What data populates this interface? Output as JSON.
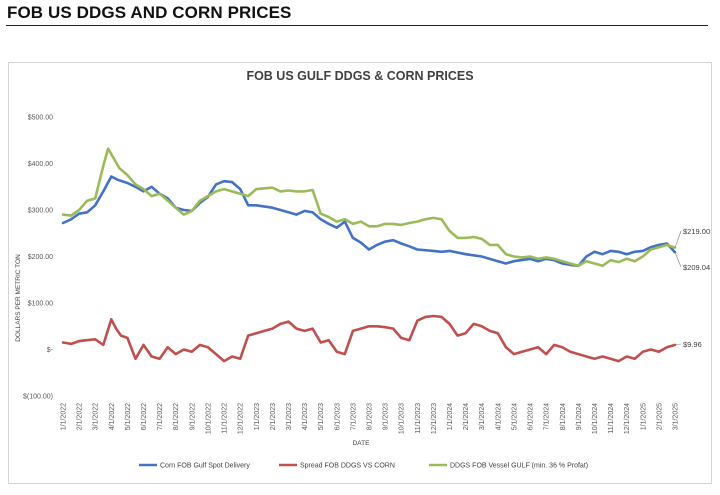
{
  "page_title": "FOB US DDGS AND CORN PRICES",
  "chart_data": {
    "type": "line",
    "title": "FOB US GULF DDGS & CORN PRICES",
    "ylabel": "DOLLARS PER METRIC TON",
    "xlabel": "DATE",
    "ylim": [
      -100,
      500
    ],
    "ytick_values": [
      500,
      400,
      300,
      200,
      100,
      0,
      -100
    ],
    "ytick_labels": [
      "$500.00",
      "$400.00",
      "$300.00",
      "$200.00",
      "$100.00",
      "$-",
      "$(100.00)"
    ],
    "categories": [
      "1/1/2022",
      "2/1/2022",
      "3/1/2022",
      "4/1/2022",
      "5/1/2022",
      "6/1/2022",
      "7/1/2022",
      "8/1/2022",
      "9/1/2022",
      "10/1/2022",
      "11/1/2022",
      "12/1/2022",
      "1/1/2023",
      "2/1/2023",
      "3/1/2023",
      "4/1/2023",
      "5/1/2023",
      "6/1/2023",
      "7/1/2023",
      "8/1/2023",
      "9/1/2023",
      "10/1/2023",
      "11/1/2023",
      "12/1/2023",
      "1/1/2024",
      "2/1/2024",
      "3/1/2024",
      "4/1/2024",
      "5/1/2024",
      "6/1/2024",
      "7/1/2024",
      "8/1/2024",
      "9/1/2024",
      "10/1/2024",
      "11/1/2024",
      "12/1/2024",
      "1/1/2025",
      "2/1/2025",
      "3/1/2025"
    ],
    "series": [
      {
        "name": "Corn FOB Gulf Spot Delivery",
        "color": "#4472c4",
        "values": [
          [
            0,
            272
          ],
          [
            0.5,
            280
          ],
          [
            1,
            292
          ],
          [
            1.5,
            295
          ],
          [
            2,
            310
          ],
          [
            2.5,
            340
          ],
          [
            3,
            372
          ],
          [
            3.4,
            365
          ],
          [
            4,
            358
          ],
          [
            4.5,
            350
          ],
          [
            5,
            340
          ],
          [
            5.5,
            350
          ],
          [
            6,
            335
          ],
          [
            6.5,
            325
          ],
          [
            7,
            305
          ],
          [
            7.5,
            300
          ],
          [
            8,
            298
          ],
          [
            8.5,
            315
          ],
          [
            9,
            328
          ],
          [
            9.5,
            355
          ],
          [
            10,
            362
          ],
          [
            10.5,
            360
          ],
          [
            11,
            345
          ],
          [
            11.5,
            310
          ],
          [
            12,
            310
          ],
          [
            13,
            305
          ],
          [
            14,
            295
          ],
          [
            14.5,
            290
          ],
          [
            15,
            298
          ],
          [
            15.5,
            295
          ],
          [
            16,
            280
          ],
          [
            16.5,
            270
          ],
          [
            17,
            262
          ],
          [
            17.5,
            275
          ],
          [
            18,
            240
          ],
          [
            18.5,
            230
          ],
          [
            19,
            215
          ],
          [
            19.5,
            225
          ],
          [
            20,
            232
          ],
          [
            20.5,
            235
          ],
          [
            21,
            228
          ],
          [
            21.5,
            222
          ],
          [
            22,
            215
          ],
          [
            23,
            212
          ],
          [
            23.5,
            210
          ],
          [
            24,
            212
          ],
          [
            25,
            205
          ],
          [
            26,
            200
          ],
          [
            27,
            190
          ],
          [
            27.5,
            185
          ],
          [
            28,
            190
          ],
          [
            29,
            195
          ],
          [
            29.5,
            190
          ],
          [
            30,
            195
          ],
          [
            30.5,
            192
          ],
          [
            31,
            185
          ],
          [
            31.5,
            182
          ],
          [
            32,
            180
          ],
          [
            32.5,
            200
          ],
          [
            33,
            210
          ],
          [
            33.5,
            205
          ],
          [
            34,
            212
          ],
          [
            34.5,
            210
          ],
          [
            35,
            205
          ],
          [
            35.5,
            210
          ],
          [
            36,
            212
          ],
          [
            36.5,
            220
          ],
          [
            37,
            225
          ],
          [
            37.5,
            228
          ],
          [
            38,
            209.04
          ]
        ]
      },
      {
        "name": "Spread FOB DDGS VS CORN",
        "color": "#c0504d",
        "values": [
          [
            0,
            15
          ],
          [
            0.5,
            12
          ],
          [
            1,
            18
          ],
          [
            1.5,
            20
          ],
          [
            2,
            22
          ],
          [
            2.5,
            10
          ],
          [
            3,
            65
          ],
          [
            3.3,
            45
          ],
          [
            3.6,
            30
          ],
          [
            4,
            25
          ],
          [
            4.5,
            -20
          ],
          [
            5,
            10
          ],
          [
            5.5,
            -15
          ],
          [
            6,
            -20
          ],
          [
            6.5,
            5
          ],
          [
            7,
            -10
          ],
          [
            7.5,
            0
          ],
          [
            8,
            -5
          ],
          [
            8.5,
            10
          ],
          [
            9,
            5
          ],
          [
            9.5,
            -10
          ],
          [
            10,
            -25
          ],
          [
            10.5,
            -15
          ],
          [
            11,
            -20
          ],
          [
            11.5,
            30
          ],
          [
            12,
            35
          ],
          [
            12.5,
            40
          ],
          [
            13,
            45
          ],
          [
            13.5,
            55
          ],
          [
            14,
            60
          ],
          [
            14.5,
            45
          ],
          [
            15,
            40
          ],
          [
            15.5,
            45
          ],
          [
            16,
            15
          ],
          [
            16.5,
            20
          ],
          [
            17,
            -5
          ],
          [
            17.5,
            -10
          ],
          [
            18,
            40
          ],
          [
            18.5,
            45
          ],
          [
            19,
            50
          ],
          [
            19.5,
            50
          ],
          [
            20,
            48
          ],
          [
            20.5,
            45
          ],
          [
            21,
            25
          ],
          [
            21.5,
            20
          ],
          [
            22,
            62
          ],
          [
            22.5,
            70
          ],
          [
            23,
            72
          ],
          [
            23.5,
            70
          ],
          [
            24,
            55
          ],
          [
            24.5,
            30
          ],
          [
            25,
            35
          ],
          [
            25.5,
            55
          ],
          [
            26,
            50
          ],
          [
            26.5,
            40
          ],
          [
            27,
            35
          ],
          [
            27.5,
            5
          ],
          [
            28,
            -10
          ],
          [
            28.5,
            -5
          ],
          [
            29,
            0
          ],
          [
            29.5,
            5
          ],
          [
            30,
            -10
          ],
          [
            30.5,
            10
          ],
          [
            31,
            5
          ],
          [
            31.5,
            -5
          ],
          [
            32,
            -10
          ],
          [
            32.5,
            -15
          ],
          [
            33,
            -20
          ],
          [
            33.5,
            -15
          ],
          [
            34,
            -20
          ],
          [
            34.5,
            -25
          ],
          [
            35,
            -15
          ],
          [
            35.5,
            -20
          ],
          [
            36,
            -5
          ],
          [
            36.5,
            0
          ],
          [
            37,
            -5
          ],
          [
            37.5,
            5
          ],
          [
            38,
            9.96
          ]
        ]
      },
      {
        "name": "DDGS FOB Vessel GULF  (min. 36 % Profat)",
        "color": "#9bbb59",
        "values": [
          [
            0,
            290
          ],
          [
            0.5,
            288
          ],
          [
            1,
            300
          ],
          [
            1.5,
            320
          ],
          [
            2,
            325
          ],
          [
            2.5,
            395
          ],
          [
            2.8,
            432
          ],
          [
            3,
            420
          ],
          [
            3.5,
            390
          ],
          [
            4,
            375
          ],
          [
            4.5,
            355
          ],
          [
            5,
            345
          ],
          [
            5.5,
            330
          ],
          [
            6,
            335
          ],
          [
            6.5,
            320
          ],
          [
            7,
            305
          ],
          [
            7.5,
            290
          ],
          [
            8,
            298
          ],
          [
            8.5,
            320
          ],
          [
            9,
            330
          ],
          [
            9.5,
            340
          ],
          [
            10,
            345
          ],
          [
            10.5,
            340
          ],
          [
            11,
            335
          ],
          [
            11.5,
            330
          ],
          [
            12,
            345
          ],
          [
            13,
            348
          ],
          [
            13.5,
            340
          ],
          [
            14,
            342
          ],
          [
            14.5,
            340
          ],
          [
            15,
            340
          ],
          [
            15.5,
            343
          ],
          [
            16,
            292
          ],
          [
            16.5,
            285
          ],
          [
            17,
            275
          ],
          [
            17.5,
            280
          ],
          [
            18,
            270
          ],
          [
            18.5,
            275
          ],
          [
            19,
            265
          ],
          [
            19.5,
            265
          ],
          [
            20,
            270
          ],
          [
            20.5,
            270
          ],
          [
            21,
            268
          ],
          [
            21.5,
            272
          ],
          [
            22,
            275
          ],
          [
            22.5,
            280
          ],
          [
            23,
            283
          ],
          [
            23.5,
            280
          ],
          [
            24,
            255
          ],
          [
            24.5,
            240
          ],
          [
            25,
            240
          ],
          [
            25.5,
            242
          ],
          [
            26,
            238
          ],
          [
            26.5,
            225
          ],
          [
            27,
            225
          ],
          [
            27.5,
            205
          ],
          [
            28,
            200
          ],
          [
            28.5,
            198
          ],
          [
            29,
            200
          ],
          [
            29.5,
            195
          ],
          [
            30,
            198
          ],
          [
            30.5,
            195
          ],
          [
            31,
            190
          ],
          [
            31.5,
            185
          ],
          [
            32,
            180
          ],
          [
            32.5,
            190
          ],
          [
            33,
            185
          ],
          [
            33.5,
            180
          ],
          [
            34,
            192
          ],
          [
            34.5,
            188
          ],
          [
            35,
            195
          ],
          [
            35.5,
            190
          ],
          [
            36,
            200
          ],
          [
            36.5,
            215
          ],
          [
            37,
            220
          ],
          [
            37.5,
            225
          ],
          [
            38,
            219
          ]
        ]
      }
    ],
    "annotations": [
      {
        "text": "$219.00",
        "x": 38,
        "y": 219,
        "series": "DDGS FOB Vessel GULF  (min. 36 % Profat)"
      },
      {
        "text": "$209.04",
        "x": 38,
        "y": 209.04,
        "series": "Corn FOB Gulf Spot Delivery"
      },
      {
        "text": "$9.96",
        "x": 38,
        "y": 9.96,
        "series": "Spread FOB DDGS VS CORN"
      }
    ],
    "legend_position": "bottom",
    "grid": false
  }
}
